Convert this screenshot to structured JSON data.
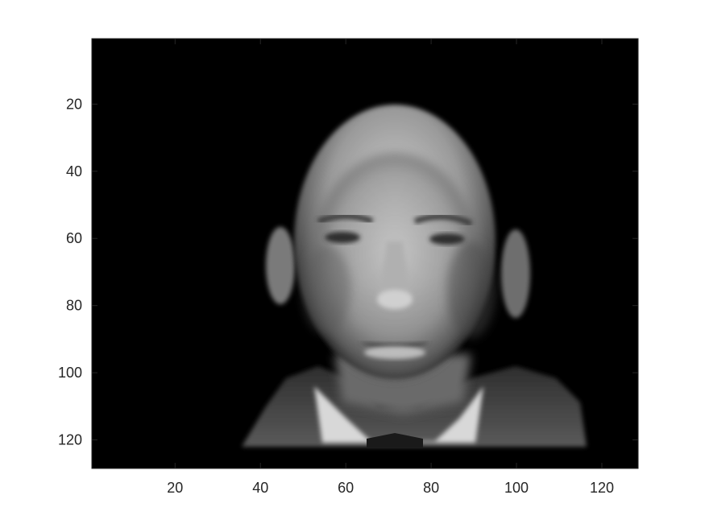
{
  "chart_data": {
    "type": "image",
    "title": "",
    "xlabel": "",
    "ylabel": "",
    "xlim": [
      0.5,
      128.5
    ],
    "ylim": [
      0.5,
      128.5
    ],
    "y_reversed": true,
    "colormap": "gray",
    "grid": false,
    "x_ticks": [
      20,
      40,
      60,
      80,
      100,
      120
    ],
    "y_ticks": [
      20,
      40,
      60,
      80,
      100,
      120
    ],
    "x_tick_labels": [
      "20",
      "40",
      "60",
      "80",
      "100",
      "120"
    ],
    "y_tick_labels": [
      "20",
      "40",
      "60",
      "80",
      "100",
      "120"
    ],
    "image_content": "grayscale face of a bald man in suit and bow tie on a black background",
    "colors": {
      "background": "#000000",
      "axis": "#262626",
      "figure": "#ffffff"
    }
  }
}
